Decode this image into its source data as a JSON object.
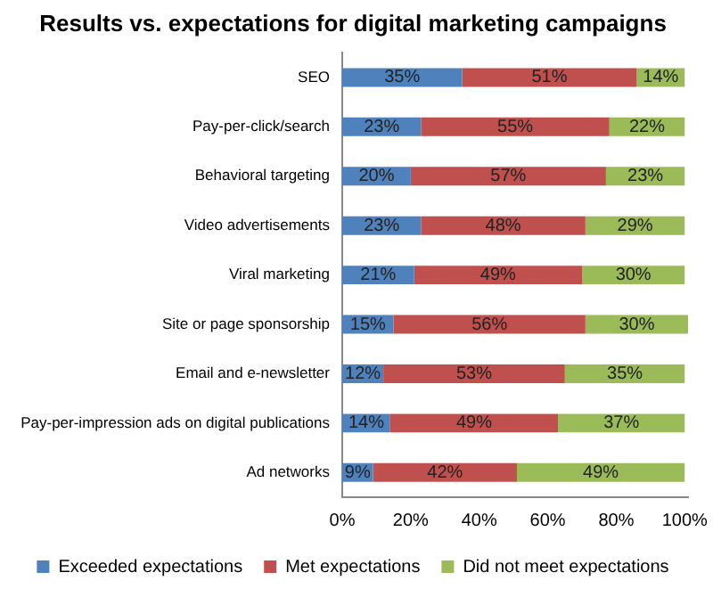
{
  "chart_data": {
    "type": "bar",
    "orientation": "horizontal",
    "stacked": true,
    "title": "Results vs. expectations for digital marketing campaigns",
    "categories": [
      "SEO",
      "Pay-per-click/search",
      "Behavioral targeting",
      "Video advertisements",
      "Viral marketing",
      "Site or page sponsorship",
      "Email and e-newsletter",
      "Pay-per-impression ads on digital publications",
      "Ad networks"
    ],
    "series": [
      {
        "name": "Exceeded expectations",
        "color": "#4f81bd",
        "values": [
          35,
          23,
          20,
          23,
          21,
          15,
          12,
          14,
          9
        ],
        "value_labels": [
          "35%",
          "23%",
          "20%",
          "23%",
          "21%",
          "15%",
          "12%",
          "14%",
          "9%"
        ]
      },
      {
        "name": "Met expectations",
        "color": "#c0504d",
        "values": [
          51,
          55,
          57,
          48,
          49,
          56,
          53,
          49,
          42
        ],
        "value_labels": [
          "51%",
          "55%",
          "57%",
          "48%",
          "49%",
          "56%",
          "53%",
          "49%",
          "42%"
        ]
      },
      {
        "name": "Did not meet expectations",
        "color": "#9bbb59",
        "values": [
          14,
          22,
          23,
          29,
          30,
          30,
          35,
          37,
          49
        ],
        "value_labels": [
          "14%",
          "22%",
          "23%",
          "29%",
          "30%",
          "30%",
          "35%",
          "37%",
          "49%"
        ]
      }
    ],
    "xlim": [
      0,
      101
    ],
    "xticks": [
      {
        "value": 0,
        "label": "0%"
      },
      {
        "value": 20,
        "label": "20%"
      },
      {
        "value": 40,
        "label": "40%"
      },
      {
        "value": 60,
        "label": "60%"
      },
      {
        "value": 80,
        "label": "80%"
      },
      {
        "value": 100,
        "label": "100%"
      }
    ],
    "grid": false,
    "legend": "bottom"
  }
}
